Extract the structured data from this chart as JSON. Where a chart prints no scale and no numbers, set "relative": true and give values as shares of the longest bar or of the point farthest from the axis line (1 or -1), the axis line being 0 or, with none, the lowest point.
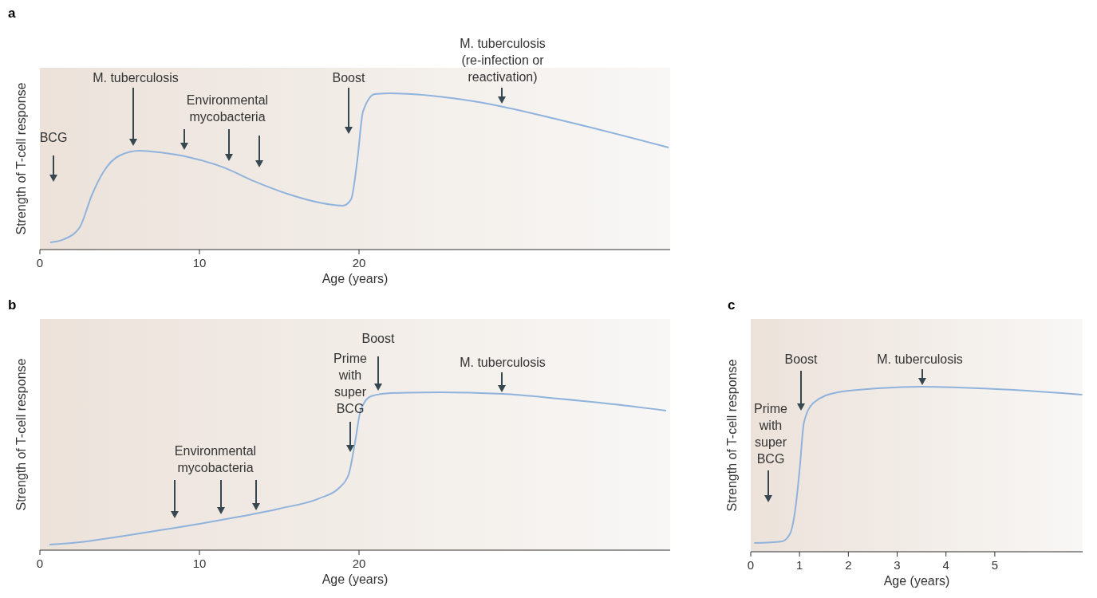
{
  "chart_data": [
    {
      "type": "line",
      "title": "a",
      "xlabel": "Age (years)",
      "ylabel": "Strength of T-cell response",
      "relative": true,
      "xlim": [
        0,
        39.5
      ],
      "xticks": [
        0,
        10,
        20
      ],
      "color": "#8fb3dc",
      "x": [
        0.65,
        1.5,
        2.5,
        3.25,
        4,
        5,
        6.25,
        7.5,
        9.5,
        11.5,
        13.5,
        15.5,
        17.5,
        19,
        19.5,
        19.9,
        20.25,
        21,
        22,
        24.5,
        27.5,
        32.5,
        39.4
      ],
      "values": [
        0.046,
        0.066,
        0.143,
        0.347,
        0.5,
        0.602,
        0.633,
        0.622,
        0.587,
        0.526,
        0.434,
        0.357,
        0.301,
        0.281,
        0.321,
        0.577,
        0.883,
        0.995,
        1,
        0.985,
        0.944,
        0.832,
        0.653
      ],
      "annotations": [
        "BCG",
        "M. tuberculosis",
        "Environmental\nmycobacteria",
        "Boost",
        "M. tuberculosis\n(re-infection or\nreactivation)"
      ]
    },
    {
      "type": "line",
      "title": "b",
      "xlabel": "Age (years)",
      "ylabel": "Strength of T-cell response",
      "relative": true,
      "xlim": [
        0,
        39.5
      ],
      "xticks": [
        0,
        10,
        20
      ],
      "color": "#8fb3dc",
      "x": [
        0.6,
        2.5,
        5,
        7.5,
        10,
        12.5,
        15,
        17.5,
        18.75,
        19.35,
        19.75,
        20.1,
        20.75,
        22,
        25,
        29,
        32.5,
        36,
        39.25
      ],
      "values": [
        0.035,
        0.05,
        0.086,
        0.126,
        0.167,
        0.212,
        0.263,
        0.328,
        0.394,
        0.48,
        0.682,
        0.884,
        0.975,
        0.995,
        1,
        0.99,
        0.96,
        0.924,
        0.884
      ],
      "annotations": [
        "Environmental\nmycobacteria",
        "Prime\nwith\nsuper\nBCG",
        "Boost",
        "M. tuberculosis"
      ]
    },
    {
      "type": "line",
      "title": "c",
      "xlabel": "Age (years)",
      "ylabel": "Strength of T-cell response",
      "relative": true,
      "xlim": [
        0,
        6.8
      ],
      "xticks": [
        0,
        1,
        2,
        3,
        4,
        5
      ],
      "color": "#8fb3dc",
      "x": [
        0.07,
        0.64,
        0.8,
        0.91,
        1.0,
        1.09,
        1.29,
        1.78,
        2.6,
        3.5,
        5.04,
        6.79
      ],
      "values": [
        0.053,
        0.063,
        0.106,
        0.251,
        0.493,
        0.783,
        0.903,
        0.966,
        0.99,
        1,
        0.986,
        0.952
      ],
      "annotations": [
        "Prime\nwith\nsuper\nBCG",
        "Boost",
        "M. tuberculosis"
      ]
    }
  ]
}
